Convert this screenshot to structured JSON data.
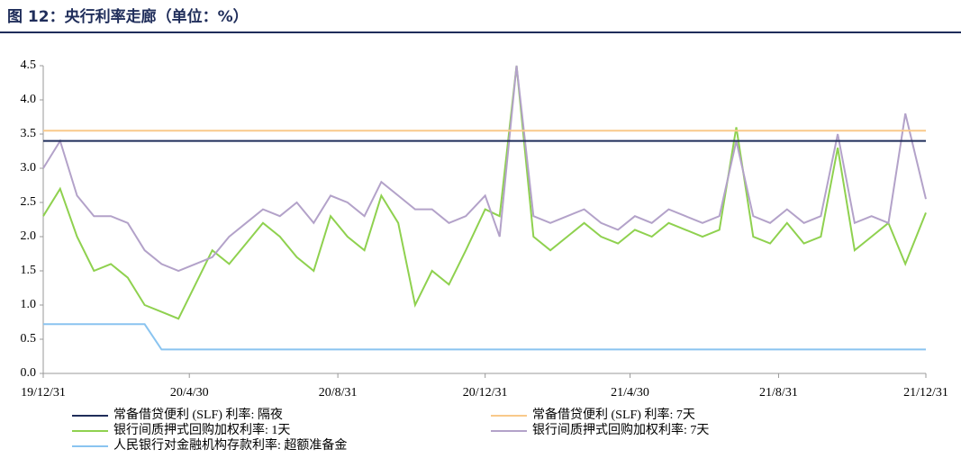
{
  "chart_data": {
    "type": "line",
    "title": "图 12：央行利率走廊（单位：%）",
    "x": [
      "2019-12-31",
      "2020-01-14",
      "2020-01-28",
      "2020-02-11",
      "2020-02-25",
      "2020-03-10",
      "2020-03-24",
      "2020-04-07",
      "2020-04-21",
      "2020-05-05",
      "2020-05-19",
      "2020-06-02",
      "2020-06-16",
      "2020-06-30",
      "2020-07-14",
      "2020-07-28",
      "2020-08-11",
      "2020-08-25",
      "2020-09-08",
      "2020-09-22",
      "2020-10-06",
      "2020-10-20",
      "2020-11-03",
      "2020-11-17",
      "2020-12-01",
      "2020-12-15",
      "2020-12-31",
      "2021-01-12",
      "2021-01-26",
      "2021-02-09",
      "2021-02-23",
      "2021-03-09",
      "2021-03-23",
      "2021-04-06",
      "2021-04-20",
      "2021-05-04",
      "2021-05-18",
      "2021-06-01",
      "2021-06-15",
      "2021-06-29",
      "2021-07-13",
      "2021-07-27",
      "2021-08-10",
      "2021-08-24",
      "2021-09-07",
      "2021-09-21",
      "2021-10-05",
      "2021-10-19",
      "2021-11-02",
      "2021-11-16",
      "2021-11-30",
      "2021-12-14",
      "2021-12-31"
    ],
    "series": [
      {
        "name": "常备借贷便利 (SLF) 利率: 隔夜",
        "color": "#1f2d5a",
        "values": [
          3.4,
          3.4,
          3.4,
          3.4,
          3.4,
          3.4,
          3.4,
          3.4,
          3.4,
          3.4,
          3.4,
          3.4,
          3.4,
          3.4,
          3.4,
          3.4,
          3.4,
          3.4,
          3.4,
          3.4,
          3.4,
          3.4,
          3.4,
          3.4,
          3.4,
          3.4,
          3.4,
          3.4,
          3.4,
          3.4,
          3.4,
          3.4,
          3.4,
          3.4,
          3.4,
          3.4,
          3.4,
          3.4,
          3.4,
          3.4,
          3.4,
          3.4,
          3.4,
          3.4,
          3.4,
          3.4,
          3.4,
          3.4,
          3.4,
          3.4,
          3.4,
          3.4,
          3.4
        ]
      },
      {
        "name": "常备借贷便利 (SLF) 利率: 7天",
        "color": "#f9c98a",
        "values": [
          3.55,
          3.55,
          3.55,
          3.55,
          3.55,
          3.55,
          3.55,
          3.55,
          3.55,
          3.55,
          3.55,
          3.55,
          3.55,
          3.55,
          3.55,
          3.55,
          3.55,
          3.55,
          3.55,
          3.55,
          3.55,
          3.55,
          3.55,
          3.55,
          3.55,
          3.55,
          3.55,
          3.55,
          3.55,
          3.55,
          3.55,
          3.55,
          3.55,
          3.55,
          3.55,
          3.55,
          3.55,
          3.55,
          3.55,
          3.55,
          3.55,
          3.55,
          3.55,
          3.55,
          3.55,
          3.55,
          3.55,
          3.55,
          3.55,
          3.55,
          3.55,
          3.55,
          3.55
        ]
      },
      {
        "name": "银行间质押式回购加权利率: 1天",
        "color": "#8fd14f",
        "values": [
          2.3,
          2.7,
          2.0,
          1.5,
          1.6,
          1.4,
          1.0,
          0.9,
          0.8,
          1.3,
          1.8,
          1.6,
          1.9,
          2.2,
          2.0,
          1.7,
          1.5,
          2.3,
          2.0,
          1.8,
          2.6,
          2.2,
          1.0,
          1.5,
          1.3,
          1.8,
          2.4,
          2.3,
          4.5,
          2.0,
          1.8,
          2.0,
          2.2,
          2.0,
          1.9,
          2.1,
          2.0,
          2.2,
          2.1,
          2.0,
          2.1,
          3.6,
          2.0,
          1.9,
          2.2,
          1.9,
          2.0,
          3.3,
          1.8,
          2.0,
          2.2,
          1.6,
          2.35
        ]
      },
      {
        "name": "银行间质押式回购加权利率: 7天",
        "color": "#b3a2c9",
        "values": [
          3.0,
          3.4,
          2.6,
          2.3,
          2.3,
          2.2,
          1.8,
          1.6,
          1.5,
          1.6,
          1.7,
          2.0,
          2.2,
          2.4,
          2.3,
          2.5,
          2.2,
          2.6,
          2.5,
          2.3,
          2.8,
          2.6,
          2.4,
          2.4,
          2.2,
          2.3,
          2.6,
          2.0,
          4.5,
          2.3,
          2.2,
          2.3,
          2.4,
          2.2,
          2.1,
          2.3,
          2.2,
          2.4,
          2.3,
          2.2,
          2.3,
          3.4,
          2.3,
          2.2,
          2.4,
          2.2,
          2.3,
          3.5,
          2.2,
          2.3,
          2.2,
          3.8,
          2.55
        ]
      },
      {
        "name": "人民银行对金融机构存款利率: 超额准备金",
        "color": "#8ac4f0",
        "values": [
          0.72,
          0.72,
          0.72,
          0.72,
          0.72,
          0.72,
          0.72,
          0.35,
          0.35,
          0.35,
          0.35,
          0.35,
          0.35,
          0.35,
          0.35,
          0.35,
          0.35,
          0.35,
          0.35,
          0.35,
          0.35,
          0.35,
          0.35,
          0.35,
          0.35,
          0.35,
          0.35,
          0.35,
          0.35,
          0.35,
          0.35,
          0.35,
          0.35,
          0.35,
          0.35,
          0.35,
          0.35,
          0.35,
          0.35,
          0.35,
          0.35,
          0.35,
          0.35,
          0.35,
          0.35,
          0.35,
          0.35,
          0.35,
          0.35,
          0.35,
          0.35,
          0.35,
          0.35
        ]
      }
    ],
    "xlim": [
      "2019-12-31",
      "2021-12-31"
    ],
    "xticks": [
      {
        "value": "2019-12-31",
        "label": "19/12/31"
      },
      {
        "value": "2020-04-30",
        "label": "20/4/30"
      },
      {
        "value": "2020-08-31",
        "label": "20/8/31"
      },
      {
        "value": "2020-12-31",
        "label": "20/12/31"
      },
      {
        "value": "2021-04-30",
        "label": "21/4/30"
      },
      {
        "value": "2021-08-31",
        "label": "21/8/31"
      },
      {
        "value": "2021-12-31",
        "label": "21/12/31"
      }
    ],
    "ylim": [
      0,
      4.5
    ],
    "yticks": [
      {
        "value": 0,
        "label": "0.0"
      },
      {
        "value": 0.5,
        "label": "0.5"
      },
      {
        "value": 1,
        "label": "1.0"
      },
      {
        "value": 1.5,
        "label": "1.5"
      },
      {
        "value": 2,
        "label": "2.0"
      },
      {
        "value": 2.5,
        "label": "2.5"
      },
      {
        "value": 3,
        "label": "3.0"
      },
      {
        "value": 3.5,
        "label": "3.5"
      },
      {
        "value": 4,
        "label": "4.0"
      },
      {
        "value": 4.5,
        "label": "4.5"
      }
    ],
    "grid": false
  }
}
